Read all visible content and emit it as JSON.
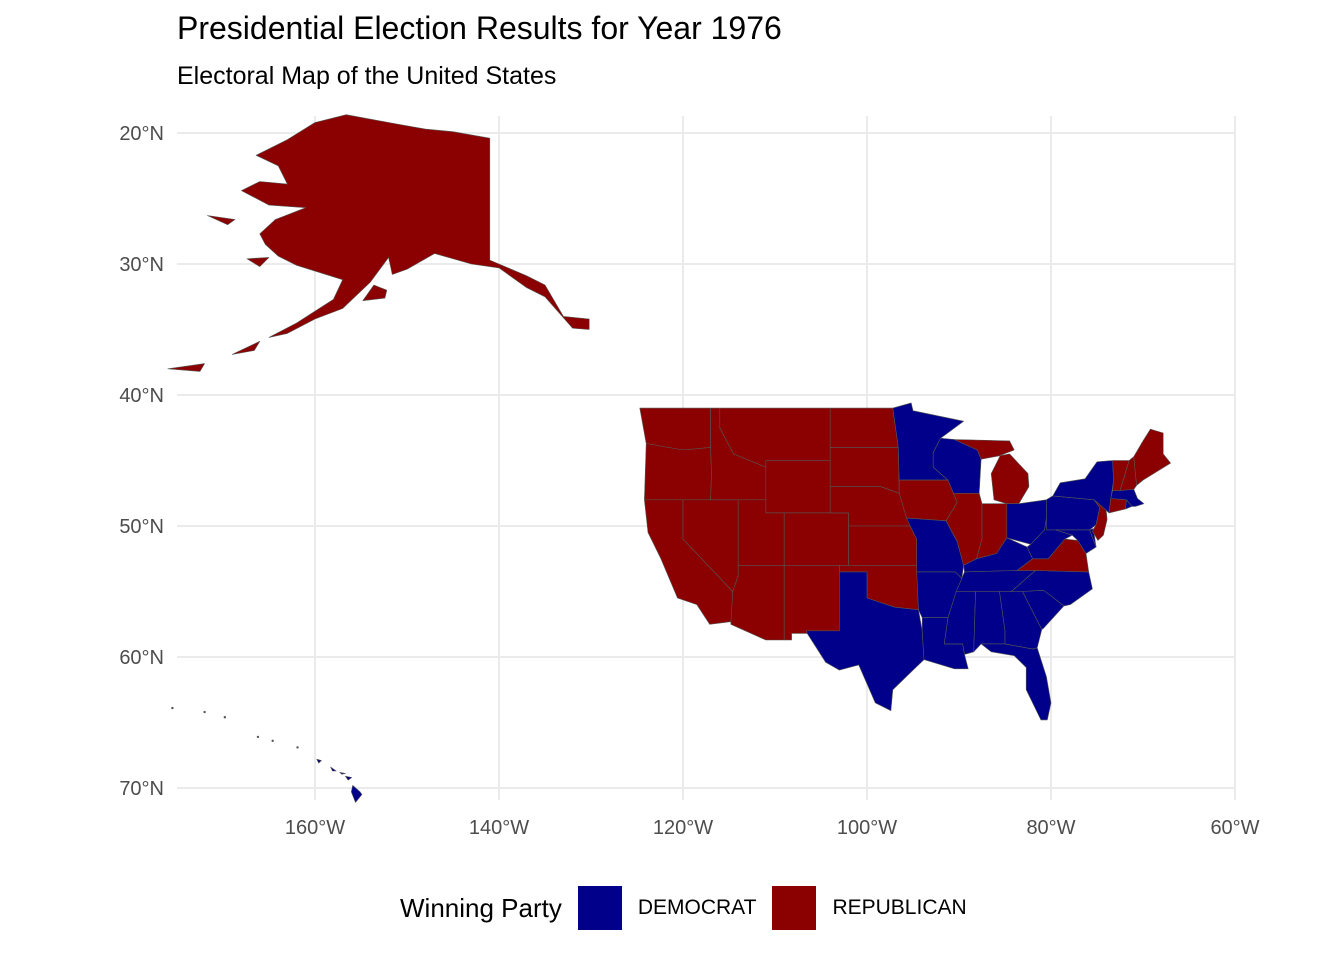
{
  "title": "Presidential Election Results for Year 1976",
  "subtitle": "Electoral Map of the United States",
  "axes": {
    "x_ticks": [
      "160°W",
      "140°W",
      "120°W",
      "100°W",
      "80°W",
      "60°W"
    ],
    "y_ticks": [
      "70°N",
      "60°N",
      "50°N",
      "40°N",
      "30°N",
      "20°N"
    ]
  },
  "legend": {
    "title": "Winning Party",
    "items": [
      {
        "label": "DEMOCRAT",
        "color": "#00008b"
      },
      {
        "label": "REPUBLICAN",
        "color": "#8b0000"
      }
    ]
  },
  "colors": {
    "democrat": "#00008b",
    "republican": "#8b0000",
    "grid": "#ebebeb",
    "border": "#555555"
  },
  "chart_data": {
    "type": "choropleth",
    "x_range": [
      -175,
      -60
    ],
    "y_range": [
      19,
      72
    ],
    "x_ticks": [
      -160,
      -140,
      -120,
      -100,
      -80,
      -60
    ],
    "y_ticks": [
      20,
      30,
      40,
      50,
      60,
      70
    ],
    "grid": true,
    "legend_position": "bottom",
    "winners": {
      "DEMOCRAT": [
        "MN",
        "WI",
        "MO",
        "AR",
        "LA",
        "TX",
        "MS",
        "AL",
        "GA",
        "FL",
        "SC",
        "NC",
        "TN",
        "KY",
        "WV",
        "OH",
        "PA",
        "NY",
        "MA",
        "RI",
        "DE",
        "MD",
        "HI"
      ],
      "REPUBLICAN": [
        "WA",
        "OR",
        "CA",
        "NV",
        "ID",
        "MT",
        "WY",
        "UT",
        "AZ",
        "CO",
        "NM",
        "ND",
        "SD",
        "NE",
        "KS",
        "OK",
        "IA",
        "IL",
        "IN",
        "MI",
        "VA",
        "NJ",
        "CT",
        "VT",
        "NH",
        "ME",
        "AK"
      ]
    }
  }
}
